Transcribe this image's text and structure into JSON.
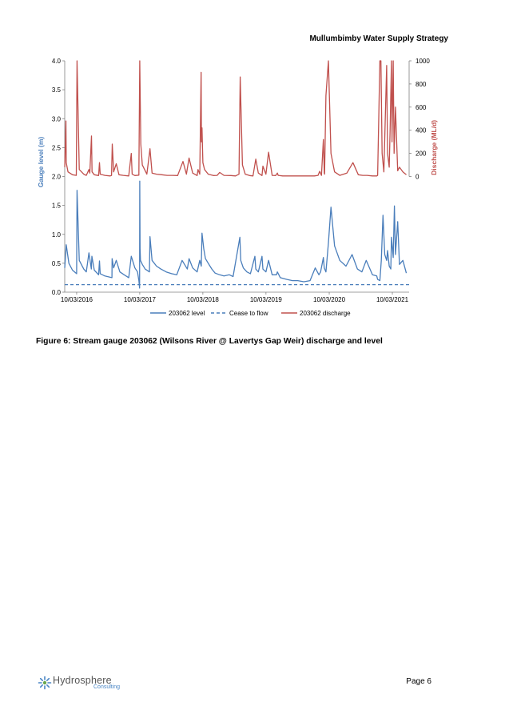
{
  "header": {
    "title": "Mullumbimby Water Supply Strategy"
  },
  "figure": {
    "caption": "Figure 6: Stream gauge 203062 (Wilsons River @ Lavertys Gap Weir) discharge and level"
  },
  "footer": {
    "logo_text": "Hydrosphere",
    "logo_subtext": "Consulting",
    "page_label": "Page 6"
  },
  "chart_data": {
    "type": "line",
    "xlabel": "",
    "ylabel": "Gauge level (m)",
    "y2label": "Discharge (ML/d)",
    "ylim": [
      0,
      4.0
    ],
    "y2lim": [
      0,
      1000
    ],
    "y2_axis_shown_range": [
      0,
      1000
    ],
    "x_ticks": [
      "10/03/2016",
      "10/03/2017",
      "10/03/2018",
      "10/03/2019",
      "10/03/2020",
      "10/03/2021"
    ],
    "y_ticks": [
      "0.0",
      "0.5",
      "1.0",
      "1.5",
      "2.0",
      "2.5",
      "3.0",
      "3.5",
      "4.0"
    ],
    "y2_ticks": [
      "0",
      "200",
      "400",
      "600",
      "800",
      "1000"
    ],
    "grid": false,
    "legend_position": "bottom",
    "colors": {
      "level": "#4a7ebb",
      "cease": "#4a7ebb",
      "discharge": "#c0504d",
      "ylabel": "#4a7ebb",
      "y2label": "#c0504d"
    },
    "series": [
      {
        "name": "203062 level",
        "axis": "left",
        "x": [
          "2016-01-01",
          "2016-01-10",
          "2016-01-25",
          "2016-02-15",
          "2016-03-10",
          "2016-03-12",
          "2016-03-25",
          "2016-04-20",
          "2016-05-05",
          "2016-05-20",
          "2016-06-03",
          "2016-06-06",
          "2016-06-20",
          "2016-07-15",
          "2016-07-20",
          "2016-07-24",
          "2016-08-20",
          "2016-09-30",
          "2016-10-01",
          "2016-10-10",
          "2016-10-25",
          "2016-11-15",
          "2016-12-10",
          "2017-01-05",
          "2017-01-20",
          "2017-02-10",
          "2017-02-25",
          "2017-03-05",
          "2017-03-09",
          "2017-03-10",
          "2017-03-12",
          "2017-03-14",
          "2017-03-25",
          "2017-04-10",
          "2017-05-05",
          "2017-05-08",
          "2017-05-20",
          "2017-06-15",
          "2017-07-10",
          "2017-08-10",
          "2017-09-10",
          "2017-10-10",
          "2017-11-10",
          "2017-12-10",
          "2017-12-20",
          "2018-01-10",
          "2018-02-05",
          "2018-02-20",
          "2018-03-01",
          "2018-03-05",
          "2018-03-15",
          "2018-03-25",
          "2018-04-10",
          "2018-05-01",
          "2018-05-20",
          "2018-06-15",
          "2018-07-10",
          "2018-08-10",
          "2018-09-01",
          "2018-10-10",
          "2018-10-15",
          "2018-10-30",
          "2018-11-20",
          "2018-12-10",
          "2019-01-05",
          "2019-01-10",
          "2019-01-25",
          "2019-02-15",
          "2019-02-20",
          "2019-03-10",
          "2019-03-25",
          "2019-04-15",
          "2019-05-10",
          "2019-05-15",
          "2019-06-01",
          "2019-07-10",
          "2019-08-10",
          "2019-09-10",
          "2019-10-15",
          "2019-11-20",
          "2019-12-20",
          "2020-01-10",
          "2020-01-20",
          "2020-02-05",
          "2020-02-10",
          "2020-02-20",
          "2020-03-05",
          "2020-03-20",
          "2020-04-10",
          "2020-05-10",
          "2020-06-15",
          "2020-07-20",
          "2020-08-20",
          "2020-09-15",
          "2020-10-10",
          "2020-11-15",
          "2020-12-10",
          "2020-12-15",
          "2020-12-28",
          "2021-01-05",
          "2021-01-15",
          "2021-01-25",
          "2021-02-05",
          "2021-02-10",
          "2021-02-20",
          "2021-03-01",
          "2021-03-05",
          "2021-03-15",
          "2021-03-22",
          "2021-03-28",
          "2021-04-10",
          "2021-04-20",
          "2021-05-10",
          "2021-05-30"
        ],
        "values": [
          0.42,
          0.82,
          0.5,
          0.38,
          0.32,
          1.76,
          0.55,
          0.4,
          0.35,
          0.68,
          0.4,
          0.62,
          0.38,
          0.3,
          0.54,
          0.32,
          0.28,
          0.25,
          0.58,
          0.42,
          0.55,
          0.35,
          0.3,
          0.25,
          0.62,
          0.42,
          0.35,
          0.2,
          0.07,
          1.92,
          0.75,
          0.55,
          0.48,
          0.4,
          0.35,
          0.96,
          0.55,
          0.45,
          0.4,
          0.35,
          0.32,
          0.3,
          0.55,
          0.4,
          0.58,
          0.42,
          0.35,
          0.55,
          0.45,
          1.02,
          0.75,
          0.58,
          0.5,
          0.4,
          0.33,
          0.3,
          0.28,
          0.3,
          0.27,
          0.95,
          0.55,
          0.42,
          0.35,
          0.32,
          0.62,
          0.4,
          0.35,
          0.62,
          0.4,
          0.35,
          0.55,
          0.3,
          0.3,
          0.35,
          0.25,
          0.22,
          0.2,
          0.2,
          0.18,
          0.2,
          0.42,
          0.3,
          0.35,
          0.6,
          0.42,
          0.35,
          0.85,
          1.47,
          0.8,
          0.55,
          0.45,
          0.65,
          0.4,
          0.35,
          0.55,
          0.3,
          0.28,
          0.22,
          0.2,
          0.55,
          1.33,
          0.65,
          0.55,
          0.72,
          0.45,
          0.4,
          0.95,
          0.6,
          1.49,
          0.65,
          1.22,
          0.48,
          0.55,
          0.33
        ]
      },
      {
        "name": "Cease to flow",
        "axis": "left",
        "x": [
          "2016-01-01",
          "2021-06-15"
        ],
        "values": [
          0.13,
          0.13
        ]
      },
      {
        "name": "203062 discharge",
        "axis": "right",
        "x": [
          "2016-01-01",
          "2016-01-08",
          "2016-01-10",
          "2016-01-20",
          "2016-02-15",
          "2016-03-08",
          "2016-03-12",
          "2016-03-25",
          "2016-04-20",
          "2016-05-05",
          "2016-05-20",
          "2016-05-25",
          "2016-06-04",
          "2016-06-07",
          "2016-06-20",
          "2016-07-15",
          "2016-07-20",
          "2016-07-24",
          "2016-08-20",
          "2016-09-20",
          "2016-09-28",
          "2016-10-02",
          "2016-10-10",
          "2016-10-25",
          "2016-11-10",
          "2016-12-05",
          "2017-01-05",
          "2017-01-20",
          "2017-01-25",
          "2017-02-10",
          "2017-03-05",
          "2017-03-10",
          "2017-03-16",
          "2017-03-25",
          "2017-04-20",
          "2017-05-08",
          "2017-05-20",
          "2017-06-15",
          "2017-07-15",
          "2017-08-15",
          "2017-09-15",
          "2017-10-15",
          "2017-11-15",
          "2017-12-05",
          "2017-12-20",
          "2018-01-10",
          "2018-02-05",
          "2018-02-10",
          "2018-02-20",
          "2018-02-28",
          "2018-03-02",
          "2018-03-05",
          "2018-03-10",
          "2018-03-20",
          "2018-04-10",
          "2018-05-10",
          "2018-06-01",
          "2018-06-15",
          "2018-07-10",
          "2018-08-20",
          "2018-09-15",
          "2018-10-05",
          "2018-10-12",
          "2018-10-25",
          "2018-11-10",
          "2018-12-05",
          "2018-12-25",
          "2019-01-10",
          "2019-01-25",
          "2019-02-15",
          "2019-02-20",
          "2019-03-10",
          "2019-03-25",
          "2019-04-15",
          "2019-05-05",
          "2019-05-15",
          "2019-05-20",
          "2019-06-15",
          "2019-07-20",
          "2019-08-20",
          "2019-09-20",
          "2019-10-20",
          "2019-11-20",
          "2019-12-15",
          "2020-01-05",
          "2020-01-15",
          "2020-01-25",
          "2020-02-05",
          "2020-02-10",
          "2020-02-12",
          "2020-02-20",
          "2020-03-05",
          "2020-03-20",
          "2020-04-10",
          "2020-05-10",
          "2020-06-20",
          "2020-07-25",
          "2020-08-25",
          "2020-09-20",
          "2020-10-15",
          "2020-11-15",
          "2020-12-10",
          "2020-12-15",
          "2020-12-28",
          "2021-01-03",
          "2021-01-10",
          "2021-01-20",
          "2021-02-05",
          "2021-02-10",
          "2021-02-20",
          "2021-02-25",
          "2021-03-05",
          "2021-03-08",
          "2021-03-15",
          "2021-03-20",
          "2021-03-28",
          "2021-04-10",
          "2021-04-20",
          "2021-05-10",
          "2021-05-30"
        ],
        "values": [
          80,
          480,
          120,
          40,
          15,
          10,
          1000,
          60,
          20,
          10,
          60,
          30,
          350,
          40,
          15,
          8,
          120,
          20,
          10,
          5,
          10,
          280,
          40,
          110,
          15,
          10,
          5,
          200,
          20,
          8,
          12,
          1000,
          280,
          100,
          20,
          240,
          30,
          20,
          15,
          10,
          10,
          8,
          130,
          20,
          160,
          30,
          8,
          60,
          20,
          900,
          300,
          420,
          120,
          60,
          20,
          8,
          10,
          35,
          10,
          8,
          5,
          20,
          860,
          100,
          20,
          8,
          5,
          150,
          30,
          8,
          90,
          20,
          210,
          10,
          8,
          30,
          10,
          5,
          5,
          5,
          5,
          5,
          5,
          5,
          10,
          45,
          10,
          320,
          30,
          20,
          700,
          1000,
          200,
          40,
          10,
          30,
          120,
          15,
          10,
          10,
          5,
          5,
          10,
          1000,
          1000,
          200,
          40,
          960,
          200,
          80,
          400,
          1000,
          300,
          1000,
          200,
          600,
          50,
          80,
          40,
          15
        ]
      }
    ]
  }
}
